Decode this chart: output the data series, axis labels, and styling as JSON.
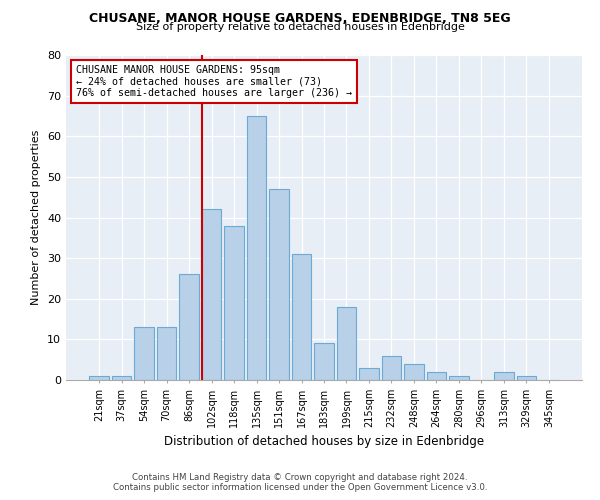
{
  "title": "CHUSANE, MANOR HOUSE GARDENS, EDENBRIDGE, TN8 5EG",
  "subtitle": "Size of property relative to detached houses in Edenbridge",
  "xlabel": "Distribution of detached houses by size in Edenbridge",
  "ylabel": "Number of detached properties",
  "categories": [
    "21sqm",
    "37sqm",
    "54sqm",
    "70sqm",
    "86sqm",
    "102sqm",
    "118sqm",
    "135sqm",
    "151sqm",
    "167sqm",
    "183sqm",
    "199sqm",
    "215sqm",
    "232sqm",
    "248sqm",
    "264sqm",
    "280sqm",
    "296sqm",
    "313sqm",
    "329sqm",
    "345sqm"
  ],
  "values": [
    1,
    1,
    13,
    13,
    26,
    42,
    38,
    65,
    47,
    31,
    9,
    18,
    3,
    6,
    4,
    2,
    1,
    0,
    2,
    1,
    0
  ],
  "bar_color": "#b8d0e8",
  "bar_edge_color": "#6aaad4",
  "annotation_text": "CHUSANE MANOR HOUSE GARDENS: 95sqm\n← 24% of detached houses are smaller (73)\n76% of semi-detached houses are larger (236) →",
  "annotation_box_color": "#ffffff",
  "annotation_box_edge_color": "#cc0000",
  "marker_line_color": "#cc0000",
  "ylim": [
    0,
    80
  ],
  "yticks": [
    0,
    10,
    20,
    30,
    40,
    50,
    60,
    70,
    80
  ],
  "background_color": "#e8eef5",
  "fig_background": "#ffffff",
  "footer_line1": "Contains HM Land Registry data © Crown copyright and database right 2024.",
  "footer_line2": "Contains public sector information licensed under the Open Government Licence v3.0."
}
